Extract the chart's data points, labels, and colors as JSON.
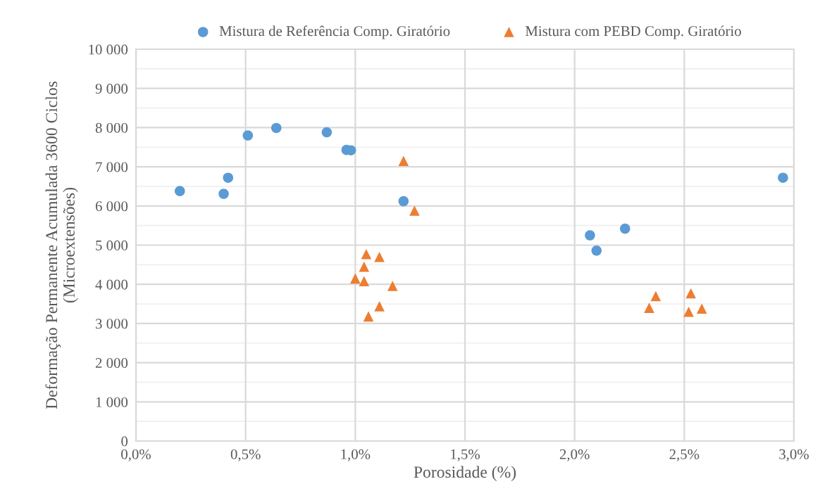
{
  "chart_data": {
    "type": "scatter",
    "xlabel": "Porosidade (%)",
    "ylabel": "Deformação Permanente Acumulada 3600 Ciclos\n(Microextensões)",
    "series": [
      {
        "name": "Mistura de Referência Comp. Giratório",
        "color": "#5b9bd5",
        "marker": "circle",
        "x": [
          0.2,
          0.4,
          0.42,
          0.51,
          0.64,
          0.87,
          0.96,
          0.98,
          1.22,
          2.07,
          2.1,
          2.23,
          2.95
        ],
        "values": [
          6380,
          6310,
          6720,
          7800,
          7990,
          7880,
          7430,
          7420,
          6120,
          5250,
          4860,
          5420,
          6720
        ]
      },
      {
        "name": "Mistura com PEBD Comp. Giratório",
        "color": "#ed7d31",
        "marker": "triangle",
        "x": [
          1.22,
          1.27,
          1.05,
          1.11,
          1.04,
          1.0,
          1.04,
          1.17,
          1.11,
          1.06,
          2.34,
          2.37,
          2.52,
          2.53,
          2.58
        ],
        "values": [
          7150,
          5880,
          4770,
          4700,
          4450,
          4150,
          4080,
          3960,
          3440,
          3180,
          3400,
          3700,
          3300,
          3770,
          3380
        ]
      }
    ],
    "xlim": [
      0,
      3
    ],
    "xticks": [
      {
        "value": 0,
        "label": "0,0%"
      },
      {
        "value": 0.5,
        "label": "0,5%"
      },
      {
        "value": 1,
        "label": "1,0%"
      },
      {
        "value": 1.5,
        "label": "1,5%"
      },
      {
        "value": 2,
        "label": "2,0%"
      },
      {
        "value": 2.5,
        "label": "2,5%"
      },
      {
        "value": 3,
        "label": "3,0%"
      }
    ],
    "ylim": [
      0,
      10000
    ],
    "yticks": [
      0,
      {
        "value": 500,
        "label": null
      },
      {
        "value": 1000,
        "label": "1 000"
      },
      {
        "value": 1500,
        "label": null
      },
      {
        "value": 2000,
        "label": "2 000"
      },
      {
        "value": 2500,
        "label": null
      },
      {
        "value": 3000,
        "label": "3 000"
      },
      {
        "value": 3500,
        "label": null
      },
      {
        "value": 4000,
        "label": "4 000"
      },
      {
        "value": 4500,
        "label": null
      },
      {
        "value": 5000,
        "label": "5 000"
      },
      {
        "value": 5500,
        "label": null
      },
      {
        "value": 6000,
        "label": "6 000"
      },
      {
        "value": 6500,
        "label": null
      },
      {
        "value": 7000,
        "label": "7 000"
      },
      {
        "value": 7500,
        "label": null
      },
      {
        "value": 8000,
        "label": "8 000"
      },
      {
        "value": 8500,
        "label": null
      },
      {
        "value": 9000,
        "label": "9 000"
      },
      {
        "value": 9500,
        "label": null
      },
      {
        "value": 10000,
        "label": "10 000"
      }
    ],
    "grid": true,
    "legend": "top"
  }
}
